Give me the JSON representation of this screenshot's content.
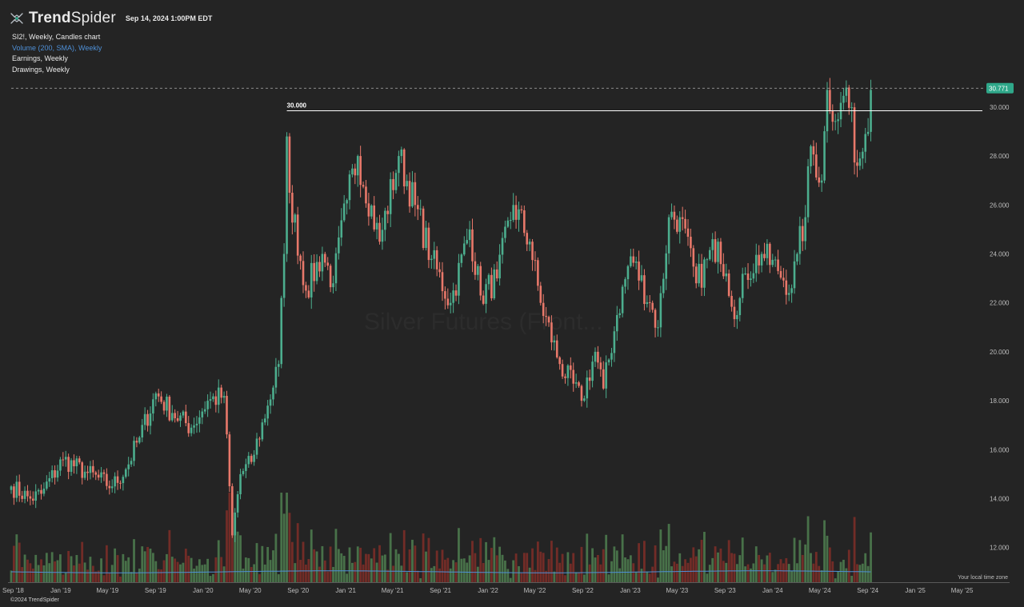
{
  "header": {
    "brand_part1": "Trend",
    "brand_part2": "Spider",
    "timestamp": "Sep 14, 2024 1:00PM EDT"
  },
  "legend": {
    "symbol_line": "SI2!, Weekly, Candles chart",
    "volume_line": "Volume (200, SMA), Weekly",
    "earnings_line": "Earnings, Weekly",
    "drawings_line": "Drawings, Weekly"
  },
  "watermark": "Silver Futures (Front...",
  "footer": {
    "copyright": "©2024 TrendSpider",
    "timezone": "Your local time zone"
  },
  "colors": {
    "up": "#4cae8e",
    "down": "#e8786a",
    "background": "#242424",
    "sma": "#4e8fd6",
    "price_tag": "#2fa88a"
  },
  "chart_data": {
    "type": "candlestick",
    "y_ticks": [
      "12.000",
      "14.000",
      "16.000",
      "18.000",
      "20.000",
      "22.000",
      "24.000",
      "26.000",
      "28.000",
      "30.000"
    ],
    "x_ticks": [
      "Sep '18",
      "Jan '19",
      "May '19",
      "Sep '19",
      "Jan '20",
      "May '20",
      "Sep '20",
      "Jan '21",
      "May '21",
      "Sep '21",
      "Jan '22",
      "May '22",
      "Sep '22",
      "Jan '23",
      "May '23",
      "Sep '23",
      "Jan '24",
      "May '24",
      "Sep '24",
      "Jan '25",
      "May '25"
    ],
    "ylim": [
      11.5,
      31.5
    ],
    "xlim": [
      "2018-08-27",
      "2025-06-16"
    ],
    "last_price": {
      "label": "30.771",
      "value": 30.771
    },
    "horizontal_line": {
      "label": "30.000",
      "value": 29.85,
      "start": "2020-08-03"
    },
    "anchors": [
      [
        "2018-08-27",
        14.5
      ],
      [
        "2018-10-15",
        14.0
      ],
      [
        "2018-11-12",
        14.2
      ],
      [
        "2019-01-07",
        15.6
      ],
      [
        "2019-03-04",
        15.1
      ],
      [
        "2019-05-13",
        14.5
      ],
      [
        "2019-06-17",
        15.2
      ],
      [
        "2019-07-22",
        16.5
      ],
      [
        "2019-09-02",
        18.3
      ],
      [
        "2019-10-14",
        17.5
      ],
      [
        "2019-12-02",
        16.9
      ],
      [
        "2020-01-13",
        18.0
      ],
      [
        "2020-02-24",
        18.2
      ],
      [
        "2020-03-16",
        12.5
      ],
      [
        "2020-04-06",
        15.0
      ],
      [
        "2020-05-04",
        15.5
      ],
      [
        "2020-06-15",
        17.8
      ],
      [
        "2020-07-13",
        19.5
      ],
      [
        "2020-07-27",
        24.0
      ],
      [
        "2020-08-03",
        28.8
      ],
      [
        "2020-08-10",
        26.5
      ],
      [
        "2020-09-21",
        22.5
      ],
      [
        "2020-11-02",
        24.0
      ],
      [
        "2020-11-30",
        22.8
      ],
      [
        "2021-01-04",
        26.2
      ],
      [
        "2021-02-01",
        28.0
      ],
      [
        "2021-03-29",
        24.5
      ],
      [
        "2021-05-17",
        28.0
      ],
      [
        "2021-06-28",
        26.0
      ],
      [
        "2021-08-09",
        23.8
      ],
      [
        "2021-09-27",
        22.0
      ],
      [
        "2021-11-15",
        25.0
      ],
      [
        "2021-12-13",
        22.3
      ],
      [
        "2022-01-24",
        23.0
      ],
      [
        "2022-03-07",
        26.0
      ],
      [
        "2022-04-18",
        24.5
      ],
      [
        "2022-05-16",
        22.0
      ],
      [
        "2022-07-04",
        19.5
      ],
      [
        "2022-08-29",
        18.0
      ],
      [
        "2022-10-03",
        20.0
      ],
      [
        "2022-10-24",
        18.5
      ],
      [
        "2022-11-28",
        21.5
      ],
      [
        "2023-01-02",
        23.9
      ],
      [
        "2023-02-20",
        22.0
      ],
      [
        "2023-03-13",
        21.0
      ],
      [
        "2023-04-10",
        25.5
      ],
      [
        "2023-05-08",
        25.5
      ],
      [
        "2023-06-19",
        22.8
      ],
      [
        "2023-08-14",
        24.5
      ],
      [
        "2023-09-04",
        23.2
      ],
      [
        "2023-10-02",
        21.5
      ],
      [
        "2023-10-23",
        23.2
      ],
      [
        "2023-12-04",
        24.0
      ],
      [
        "2024-01-15",
        23.3
      ],
      [
        "2024-02-19",
        22.6
      ],
      [
        "2024-03-04",
        24.0
      ],
      [
        "2024-03-25",
        25.5
      ],
      [
        "2024-04-08",
        28.4
      ],
      [
        "2024-05-06",
        27.0
      ],
      [
        "2024-05-20",
        30.7
      ],
      [
        "2024-06-17",
        29.5
      ],
      [
        "2024-07-08",
        30.8
      ],
      [
        "2024-08-05",
        27.6
      ],
      [
        "2024-08-26",
        28.9
      ],
      [
        "2024-09-09",
        30.7
      ]
    ],
    "volume_sma_level": "low, flat"
  }
}
